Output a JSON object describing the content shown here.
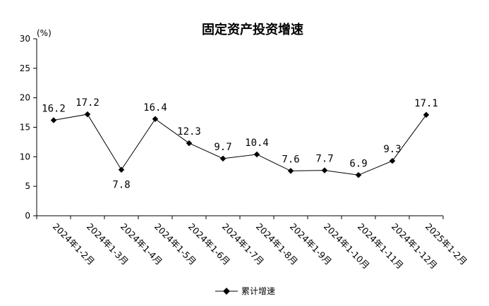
{
  "chart_data": {
    "type": "line",
    "title": "固定资产投资增速",
    "unit_label": "(%)",
    "ylim": [
      0,
      30
    ],
    "y_ticks": [
      "0",
      "5",
      "10",
      "15",
      "20",
      "25",
      "30"
    ],
    "grid": false,
    "legend_position": "bottom-center",
    "categories": [
      "2024年1-2月",
      "2024年1-3月",
      "2024年1-4月",
      "2024年1-5月",
      "2024年1-6月",
      "2024年1-7月",
      "2024年1-8月",
      "2024年1-9月",
      "2024年1-10月",
      "2024年1-11月",
      "2024年1-12月",
      "2025年1-2月"
    ],
    "series": [
      {
        "name": "累计增速",
        "values": [
          16.2,
          17.2,
          7.8,
          16.4,
          12.3,
          9.7,
          10.4,
          7.6,
          7.7,
          6.9,
          9.3,
          17.1
        ],
        "labels": [
          "16.2",
          "17.2",
          "7.8",
          "16.4",
          "12.3",
          "9.7",
          "10.4",
          "7.6",
          "7.7",
          "6.9",
          "9.3",
          "17.1"
        ],
        "color": "#000000"
      }
    ]
  }
}
